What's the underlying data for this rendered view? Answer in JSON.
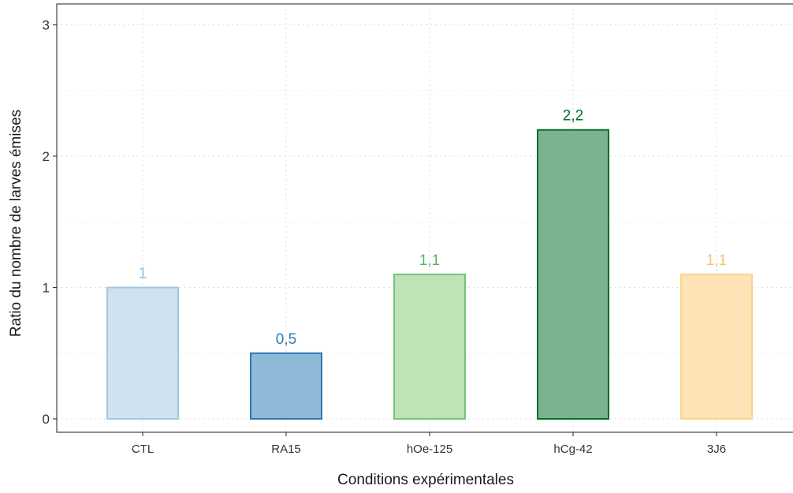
{
  "chart_data": {
    "type": "bar",
    "categories": [
      "CTL",
      "RA15",
      "hOe-125",
      "hCg-42",
      "3J6"
    ],
    "values": [
      1,
      0.5,
      1.1,
      2.2,
      1.1
    ],
    "value_labels": [
      "1",
      "0,5",
      "1,1",
      "2,2",
      "1,1"
    ],
    "xlabel": "Conditions expérimentales",
    "ylabel": "Ratio du nombre de larves émises",
    "ylim": [
      0,
      3
    ],
    "yticks": [
      0,
      1,
      2,
      3
    ],
    "ytick_labels": [
      "0",
      "1",
      "2",
      "3"
    ],
    "grid": true,
    "legend": "none",
    "colors": {
      "fill": [
        "#cfe2ef",
        "#8fb9d8",
        "#bde3b6",
        "#7ab38e",
        "#fde3b5"
      ],
      "stroke": [
        "#9ec9e2",
        "#2f78b4",
        "#74c476",
        "#006d2c",
        "#fcd48a"
      ],
      "label": [
        "#8ec0de",
        "#2c7bb6",
        "#5ab45c",
        "#0a6e2c",
        "#f5c36a"
      ]
    }
  }
}
